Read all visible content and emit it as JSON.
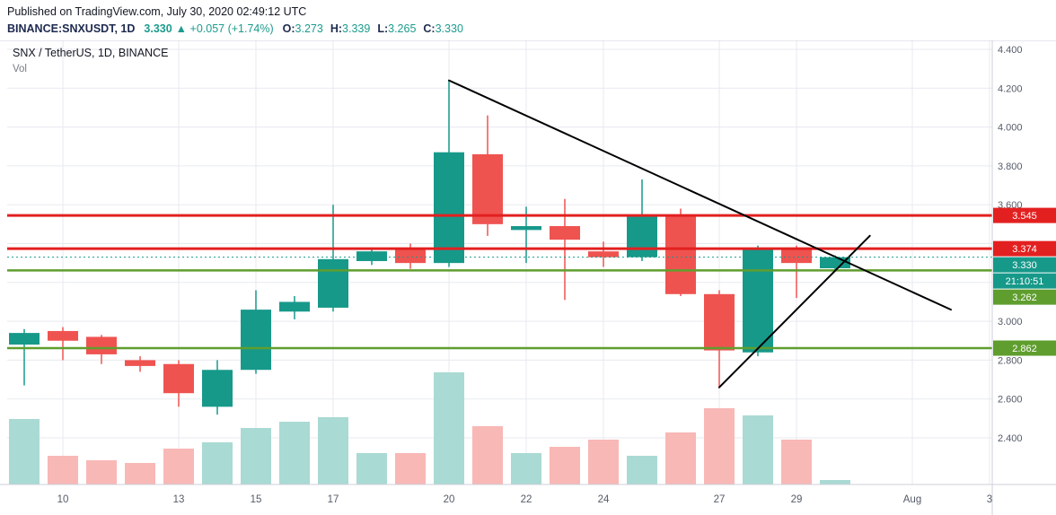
{
  "header": {
    "published": "Published on TradingView.com, July 30, 2020 02:49:12 UTC",
    "symbol": "BINANCE:SNXUSDT, 1D",
    "last_price": "3.330",
    "arrow": "▲",
    "change": "+0.057 (+1.74%)",
    "o_label": "O:",
    "o": "3.273",
    "h_label": "H:",
    "h": "3.339",
    "l_label": "L:",
    "l": "3.265",
    "c_label": "C:",
    "c": "3.330"
  },
  "legend": {
    "title": "SNX / TetherUS, 1D, BINANCE",
    "indicator": "Vol"
  },
  "colors": {
    "up": "#17998a",
    "down": "#ef5350",
    "vol_up": "#a9dad3",
    "vol_down": "#f8b8b6",
    "level_red": "#e32020",
    "level_green": "#5f9e2e",
    "trend": "#000000",
    "grid": "#e8eaf0",
    "border": "#ced0da",
    "axis_text": "#555b68",
    "header_navy": "#1e2a4f",
    "header_teal": "#1d9b8d",
    "text": "#131722",
    "muted": "#787b86",
    "badge_text": "#ffffff"
  },
  "chart_data": {
    "type": "candlestick",
    "exchange": "BINANCE",
    "interval": "1D",
    "x_dates": [
      "Jul 9",
      "Jul 10",
      "Jul 11",
      "Jul 12",
      "Jul 13",
      "Jul 14",
      "Jul 15",
      "Jul 16",
      "Jul 17",
      "Jul 18",
      "Jul 19",
      "Jul 20",
      "Jul 21",
      "Jul 22",
      "Jul 23",
      "Jul 24",
      "Jul 25",
      "Jul 26",
      "Jul 27",
      "Jul 28",
      "Jul 29",
      "Jul 30"
    ],
    "ohlc": [
      [
        2.88,
        2.96,
        2.67,
        2.94
      ],
      [
        2.95,
        2.97,
        2.8,
        2.9
      ],
      [
        2.92,
        2.93,
        2.78,
        2.83
      ],
      [
        2.8,
        2.82,
        2.74,
        2.77
      ],
      [
        2.78,
        2.8,
        2.56,
        2.63
      ],
      [
        2.56,
        2.8,
        2.52,
        2.75
      ],
      [
        2.75,
        3.16,
        2.73,
        3.06
      ],
      [
        3.05,
        3.13,
        3.01,
        3.1
      ],
      [
        3.07,
        3.6,
        3.05,
        3.32
      ],
      [
        3.31,
        3.38,
        3.29,
        3.36
      ],
      [
        3.37,
        3.4,
        3.27,
        3.3
      ],
      [
        3.3,
        4.24,
        3.28,
        3.87
      ],
      [
        3.86,
        4.06,
        3.44,
        3.5
      ],
      [
        3.47,
        3.59,
        3.3,
        3.49
      ],
      [
        3.49,
        3.63,
        3.11,
        3.42
      ],
      [
        3.36,
        3.41,
        3.28,
        3.33
      ],
      [
        3.33,
        3.73,
        3.31,
        3.54
      ],
      [
        3.54,
        3.58,
        3.13,
        3.14
      ],
      [
        3.14,
        3.16,
        2.66,
        2.85
      ],
      [
        2.84,
        3.39,
        2.82,
        3.37
      ],
      [
        3.37,
        3.39,
        3.12,
        3.3
      ],
      [
        3.273,
        3.339,
        3.265,
        3.33
      ]
    ],
    "volume": [
      73,
      32,
      27,
      24,
      40,
      47,
      63,
      70,
      75,
      35,
      35,
      125,
      65,
      35,
      42,
      50,
      32,
      58,
      85,
      77,
      50,
      5
    ],
    "price_axis": {
      "min": 2.16,
      "max": 4.446,
      "gridlines": [
        4.4,
        4.2,
        4.0,
        3.8,
        3.6,
        3.4,
        3.2,
        3.0,
        2.8,
        2.6,
        2.4
      ],
      "labels": [
        {
          "price": 4.4,
          "label": "4.400"
        },
        {
          "price": 4.2,
          "label": "4.200"
        },
        {
          "price": 4.0,
          "label": "4.000"
        },
        {
          "price": 3.8,
          "label": "3.800"
        },
        {
          "price": 3.6,
          "label": "3.600"
        },
        {
          "price": 3.0,
          "label": "3.000"
        },
        {
          "price": 2.8,
          "label": "2.800"
        },
        {
          "price": 2.6,
          "label": "2.600"
        },
        {
          "price": 2.4,
          "label": "2.400"
        }
      ]
    },
    "time_axis": {
      "labels": [
        {
          "label": "10",
          "i": 1
        },
        {
          "label": "13",
          "i": 4
        },
        {
          "label": "15",
          "i": 6
        },
        {
          "label": "17",
          "i": 8
        },
        {
          "label": "20",
          "i": 11
        },
        {
          "label": "22",
          "i": 13
        },
        {
          "label": "24",
          "i": 15
        },
        {
          "label": "27",
          "i": 18
        },
        {
          "label": "29",
          "i": 20
        },
        {
          "label": "Aug",
          "i": 23
        },
        {
          "label": "3",
          "i": 25
        }
      ]
    },
    "levels": [
      {
        "price": 3.545,
        "label": "3.545",
        "color": "red"
      },
      {
        "price": 3.374,
        "label": "3.374",
        "color": "red"
      },
      {
        "price": 3.262,
        "label": "3.262",
        "color": "green"
      },
      {
        "price": 2.862,
        "label": "2.862",
        "color": "green"
      }
    ],
    "current": {
      "price": 3.33,
      "label": "3.330",
      "countdown": "21:10:51"
    },
    "trend_lines": [
      {
        "from": {
          "i": 11,
          "p": 4.24
        },
        "to": {
          "i": 24,
          "p": 3.06
        }
      },
      {
        "from": {
          "i": 18,
          "p": 2.66
        },
        "to": {
          "i": 21.9,
          "p": 3.44
        }
      }
    ]
  }
}
